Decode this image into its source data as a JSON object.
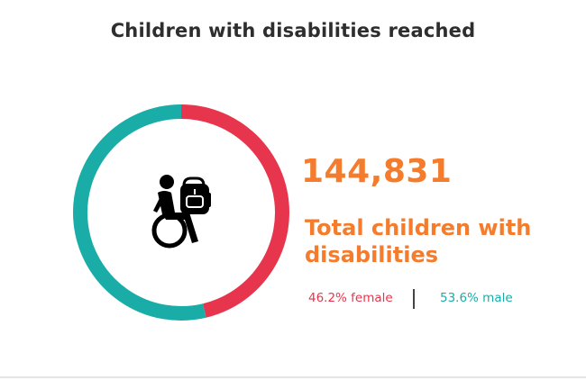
{
  "title": "Children with disabilities reached",
  "total": {
    "value": "144,831",
    "label": "Total children with disabilities"
  },
  "stats": {
    "female_text": "46.2% female",
    "male_text": "53.6% male"
  },
  "icon": "wheelchair-student-with-backpack-icon",
  "colors": {
    "female": "#e8354e",
    "male": "#1aada8",
    "accent": "#f47c2c"
  },
  "chart_data": {
    "type": "pie",
    "variant": "donut",
    "categories": [
      "female",
      "male"
    ],
    "values": [
      46.2,
      53.6
    ]
  }
}
